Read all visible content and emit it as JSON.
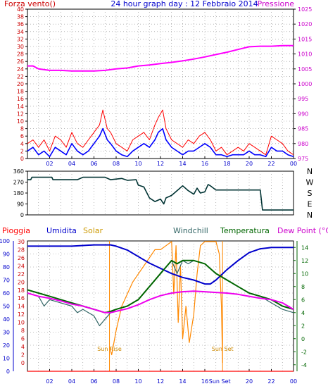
{
  "chart_data": [
    {
      "type": "line",
      "title": "24 hour graph day : 12 Febbraio 2014",
      "left_label": "Forza vento()",
      "right_label": "Pressione",
      "x_ticks": [
        "02",
        "04",
        "06",
        "08",
        "10",
        "12",
        "14",
        "16",
        "18",
        "20",
        "22",
        "00"
      ],
      "x_range": [
        0,
        24
      ],
      "y_left_ticks": [
        "0",
        "2",
        "4",
        "6",
        "8",
        "10",
        "12",
        "14",
        "16",
        "18",
        "20",
        "22",
        "24",
        "26",
        "28",
        "30",
        "32",
        "34",
        "36",
        "38",
        "40"
      ],
      "ylim_left": [
        0,
        40
      ],
      "y_right_ticks": [
        "975",
        "980",
        "985",
        "990",
        "995",
        "1000",
        "1005",
        "1010",
        "1015",
        "1020",
        "1025"
      ],
      "ylim_right": [
        975,
        1025
      ],
      "grid": true,
      "colors": {
        "gust": "#ff0000",
        "wind": "#0000ff",
        "pressure": "#ff00ff",
        "left_axis": "#cc0000",
        "right_axis": "#cc00cc"
      },
      "series": [
        {
          "key": "pressure",
          "axis": "right",
          "x": [
            0,
            0.5,
            1,
            2,
            3,
            4,
            5,
            6,
            7,
            8,
            9,
            10,
            11,
            12,
            13,
            14,
            15,
            16,
            17,
            18,
            19,
            20,
            21,
            22,
            23,
            24
          ],
          "values": [
            1006,
            1006,
            1005,
            1004.5,
            1004.5,
            1004.3,
            1004.3,
            1004.3,
            1004.5,
            1005,
            1005.3,
            1006,
            1006.3,
            1006.8,
            1007.2,
            1007.7,
            1008.3,
            1009,
            1009.8,
            1010.6,
            1011.5,
            1012.4,
            1012.6,
            1012.6,
            1012.8,
            1012.8
          ]
        },
        {
          "key": "gust",
          "axis": "left",
          "x": [
            0,
            0.5,
            1,
            1.5,
            2,
            2.5,
            3,
            3.5,
            4,
            4.5,
            5,
            5.5,
            6,
            6.5,
            6.8,
            7.2,
            7.5,
            8,
            8.5,
            9,
            9.5,
            10,
            10.5,
            11,
            11.5,
            11.8,
            12.2,
            12.5,
            13,
            13.5,
            14,
            14.5,
            15,
            15.5,
            16,
            16.5,
            17,
            17.5,
            18,
            18.5,
            19,
            19.5,
            20,
            20.5,
            21,
            21.5,
            22,
            22.5,
            23,
            23.5,
            24
          ],
          "values": [
            4,
            5,
            3,
            5,
            2,
            6,
            5,
            3,
            7,
            4,
            3,
            5,
            7,
            9,
            13,
            8,
            7,
            4,
            3,
            2,
            5,
            6,
            7,
            5,
            9,
            11,
            13,
            8,
            5,
            4,
            3,
            5,
            4,
            6,
            7,
            5,
            2,
            3,
            1,
            2,
            3,
            2,
            4,
            3,
            2,
            1,
            6,
            5,
            4,
            2,
            1
          ]
        },
        {
          "key": "wind",
          "axis": "left",
          "x": [
            0,
            0.5,
            1,
            1.5,
            2,
            2.5,
            3,
            3.5,
            4,
            4.5,
            5,
            5.5,
            6,
            6.5,
            6.8,
            7.2,
            7.5,
            8,
            8.5,
            9,
            9.5,
            10,
            10.5,
            11,
            11.5,
            11.8,
            12.2,
            12.5,
            13,
            13.5,
            14,
            14.5,
            15,
            15.5,
            16,
            16.5,
            17,
            17.5,
            18,
            18.5,
            19,
            19.5,
            20,
            20.5,
            21,
            21.5,
            22,
            22.5,
            23,
            23.5,
            24
          ],
          "values": [
            2,
            3,
            1,
            2,
            0.5,
            3,
            2,
            1,
            4,
            2,
            1,
            2,
            4,
            6,
            8,
            5,
            4,
            2,
            1,
            0.5,
            2,
            3,
            4,
            3,
            5,
            7,
            8,
            5,
            3,
            2,
            1,
            2,
            2,
            3,
            4,
            3,
            1,
            1,
            0.5,
            1,
            1,
            1,
            2,
            1,
            1,
            0.5,
            3,
            2,
            2,
            1,
            0.5
          ]
        }
      ]
    },
    {
      "type": "line",
      "x_range": [
        0,
        24
      ],
      "y_left_ticks": [
        "0",
        "90",
        "180",
        "270",
        "360"
      ],
      "ylim": [
        0,
        360
      ],
      "direction_labels": [
        "N",
        "W",
        "S",
        "E",
        "N"
      ],
      "color": "#003333",
      "series": [
        {
          "key": "direction",
          "x": [
            0,
            0.3,
            0.4,
            2.2,
            2.3,
            4.5,
            5,
            7,
            7.5,
            8.5,
            9,
            9.8,
            10,
            10.5,
            11,
            11.5,
            12,
            12.3,
            12.5,
            13,
            13.5,
            14,
            14.5,
            15,
            15.3,
            15.6,
            16,
            16.3,
            16.5,
            17,
            19,
            21,
            21.2,
            24
          ],
          "values": [
            290,
            290,
            310,
            310,
            290,
            290,
            310,
            310,
            290,
            300,
            285,
            290,
            245,
            230,
            140,
            110,
            130,
            90,
            140,
            160,
            200,
            240,
            200,
            170,
            220,
            180,
            190,
            250,
            240,
            205,
            205,
            205,
            40,
            40
          ]
        }
      ]
    },
    {
      "type": "line",
      "legend": [
        {
          "label": "Pioggia",
          "color": "#ff0000"
        },
        {
          "label": "Umidita",
          "color": "#0000cc"
        },
        {
          "label": "Solar",
          "color": "#cc9900"
        },
        {
          "label": "Windchill",
          "color": "#336666"
        },
        {
          "label": "Temperatura",
          "color": "#006600"
        },
        {
          "label": "Dew Point (°C)",
          "color": "#cc00cc"
        }
      ],
      "x_range": [
        0,
        24
      ],
      "y_left_ticks": [
        "0",
        "10",
        "20",
        "30",
        "40",
        "50",
        "60",
        "70",
        "80",
        "90",
        "100"
      ],
      "ylim_left": [
        0,
        100
      ],
      "y_mid_ticks": [
        "0",
        "2",
        "4",
        "6",
        "8",
        "10",
        "12",
        "14",
        "16",
        "18",
        "20",
        "22",
        "24",
        "26",
        "28",
        "30"
      ],
      "y_right_ticks": [
        "-4",
        "-2",
        "0",
        "2",
        "4",
        "6",
        "8",
        "10",
        "12",
        "14"
      ],
      "ylim_right": [
        -5,
        15
      ],
      "annotations": [
        {
          "label": "Sun Rise",
          "x": 7.4
        },
        {
          "label": "Sun Set",
          "x": 17.6
        }
      ],
      "sun_set_axis_label": "Sun Set",
      "sun_rise_x": 7.4,
      "sun_set_x": 17.6,
      "series": [
        {
          "key": "humidity",
          "axis": "left",
          "color": "#0000cc",
          "x": [
            0,
            1,
            2,
            3,
            4,
            5,
            6,
            7,
            7.5,
            8,
            9,
            10,
            11,
            12,
            13,
            14,
            15,
            16,
            16.5,
            17,
            18,
            19,
            20,
            21,
            22,
            23,
            24
          ],
          "values": [
            96,
            96,
            96,
            96,
            96,
            96.5,
            97,
            97,
            97,
            96,
            93,
            88,
            83,
            79,
            75,
            72,
            70,
            67,
            67,
            70,
            78,
            85,
            91,
            94,
            95,
            95,
            95
          ]
        },
        {
          "key": "temperature",
          "axis": "right",
          "color": "#006600",
          "x": [
            0,
            1,
            2,
            3,
            4,
            5,
            6,
            7,
            7.5,
            8,
            9,
            10,
            11,
            12,
            12.5,
            13,
            13.5,
            14,
            14.5,
            15,
            16,
            17,
            18,
            19,
            20,
            21,
            22,
            23,
            24
          ],
          "values": [
            7.5,
            7,
            6.5,
            6,
            5.5,
            5,
            4.5,
            4,
            4.2,
            4.5,
            5,
            6,
            8,
            10,
            11,
            12,
            11.5,
            12,
            12,
            12,
            11.5,
            10,
            9,
            8,
            7,
            6.5,
            6,
            5,
            4.5
          ]
        },
        {
          "key": "windchill",
          "axis": "right",
          "color": "#336666",
          "x": [
            0,
            1,
            1.5,
            2,
            3,
            4,
            4.5,
            5,
            6,
            6.5,
            7,
            7.5,
            8,
            9,
            10,
            11,
            12,
            12.5,
            13,
            13.5,
            14,
            14.5,
            15,
            16,
            17,
            18,
            19,
            20,
            21,
            22,
            23,
            24
          ],
          "values": [
            7,
            6.5,
            5,
            6,
            5.5,
            5,
            4,
            4.5,
            3.5,
            2,
            3,
            4,
            4.5,
            5,
            6,
            8,
            10,
            11,
            12,
            10,
            12,
            11.5,
            12,
            11.5,
            10,
            9,
            8,
            7,
            6.5,
            5.5,
            4.5,
            4
          ]
        },
        {
          "key": "dewpoint",
          "axis": "right",
          "color": "#ee00ee",
          "x": [
            0,
            1,
            2,
            3,
            4,
            5,
            6,
            7,
            7.5,
            8,
            9,
            10,
            11,
            12,
            13,
            14,
            15,
            16,
            17,
            18,
            19,
            20,
            21,
            22,
            23,
            24
          ],
          "values": [
            7,
            6.5,
            6.2,
            5.8,
            5.3,
            5,
            4.5,
            4,
            4,
            4.2,
            4.6,
            5.2,
            6,
            6.6,
            7,
            7.2,
            7.3,
            7.2,
            7.1,
            7,
            6.8,
            6.5,
            6.2,
            6,
            5.5,
            4.5
          ]
        },
        {
          "key": "solar",
          "axis": "mid",
          "color": "#ff8800",
          "x": [
            7.4,
            7.6,
            8,
            8.5,
            9,
            9.5,
            10,
            10.5,
            11,
            11.5,
            12,
            12.5,
            13,
            13.2,
            13.4,
            13.6,
            13.8,
            14,
            14.3,
            14.6,
            15,
            15.3,
            15.6,
            16,
            16.5,
            17,
            17.3,
            17.5,
            17.6
          ],
          "values": [
            4,
            2,
            8,
            14,
            17,
            20,
            22,
            24,
            26,
            28,
            28,
            29,
            30,
            17,
            29,
            10,
            24,
            6,
            14,
            5,
            12,
            22,
            29,
            30,
            30,
            30,
            27,
            14,
            0
          ]
        },
        {
          "key": "rain",
          "axis": "left",
          "color": "#ff0000",
          "x": [
            0,
            24
          ],
          "values": [
            0,
            0
          ]
        }
      ]
    }
  ]
}
